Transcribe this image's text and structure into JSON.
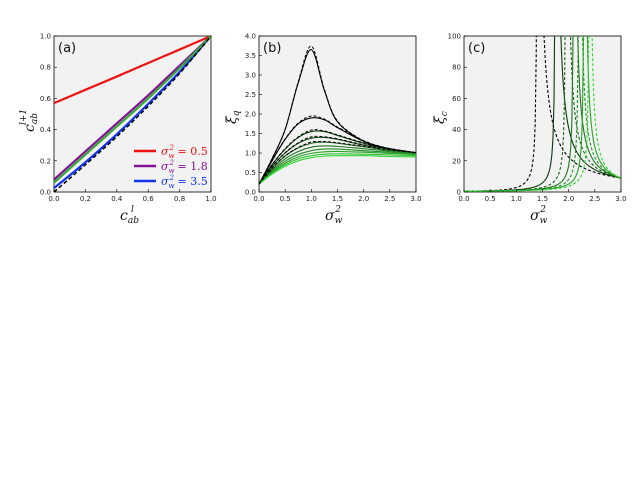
{
  "chart_data": [
    {
      "panel": "(a)",
      "type": "line",
      "xlabel": "c",
      "xlabel_sub": "ab",
      "xlabel_sup": "l",
      "ylabel": "c",
      "ylabel_sub": "ab",
      "ylabel_sup": "l+1",
      "xlim": [
        0,
        1
      ],
      "ylim": [
        0,
        1
      ],
      "xticks": [
        "0.0",
        "0.2",
        "0.4",
        "0.6",
        "0.8",
        "1.0"
      ],
      "yticks": [
        "0.0",
        "0.2",
        "0.4",
        "0.6",
        "0.8",
        "1.0"
      ],
      "legend_position": "lower-right",
      "legend_entries": [
        {
          "text": "σ",
          "sub": "w",
          "sup": "2",
          "value_text": " = 0.5",
          "color": "#ee1111"
        },
        {
          "text": "σ",
          "sub": "w",
          "sup": "2",
          "value_text": " = 1.8",
          "color": "#881199"
        },
        {
          "text": "σ",
          "sub": "w",
          "sup": "2",
          "value_text": " = 3.5",
          "color": "#1133ee"
        }
      ],
      "series": [
        {
          "legend_index": 0,
          "color": "#ee1111",
          "x": [
            0,
            0.2,
            0.4,
            0.6,
            0.8,
            1.0
          ],
          "y": [
            0.57,
            0.655,
            0.74,
            0.827,
            0.913,
            1.0
          ]
        },
        {
          "legend_index": 1,
          "color": "#881199",
          "x": [
            0,
            0.2,
            0.4,
            0.6,
            0.8,
            1.0
          ],
          "y": [
            0.08,
            0.26,
            0.44,
            0.62,
            0.81,
            1.0
          ]
        },
        {
          "legend_index": 2,
          "color": "#1133ee",
          "x": [
            0,
            0.2,
            0.4,
            0.6,
            0.8,
            1.0
          ],
          "y": [
            0.025,
            0.19,
            0.37,
            0.565,
            0.77,
            1.0
          ]
        },
        {
          "color": "#33aa33",
          "x": [
            0,
            0.2,
            0.4,
            0.6,
            0.8,
            1.0
          ],
          "y": [
            0.06,
            0.24,
            0.42,
            0.6,
            0.795,
            1.0
          ]
        },
        {
          "color": "#000000",
          "dashed": true,
          "x": [
            0,
            0.2,
            0.4,
            0.6,
            0.8,
            1.0
          ],
          "y": [
            0.0,
            0.175,
            0.355,
            0.55,
            0.76,
            1.0
          ]
        }
      ]
    },
    {
      "panel": "(b)",
      "type": "line",
      "xlabel": "σ",
      "xlabel_sub": "w",
      "xlabel_sup": "2",
      "ylabel": "ξ",
      "ylabel_sub": "q",
      "ylabel_sup": "",
      "xlim": [
        0,
        3
      ],
      "ylim": [
        0,
        4
      ],
      "xticks": [
        "0.0",
        "0.5",
        "1.0",
        "1.5",
        "2.0",
        "2.5",
        "3.0"
      ],
      "yticks": [
        "0.0",
        "0.5",
        "1.0",
        "1.5",
        "2.0",
        "2.5",
        "3.0",
        "3.5",
        "4.0"
      ],
      "curves": {
        "x": [
          0,
          0.25,
          0.5,
          0.75,
          1.0,
          1.25,
          1.5,
          2.0,
          2.5,
          3.0
        ],
        "series": [
          {
            "color": "#000000",
            "y": [
              0.2,
              0.85,
              1.6,
              2.8,
              3.65,
              2.6,
              1.8,
              1.3,
              1.1,
              1.0
            ]
          },
          {
            "color": "#000000",
            "y": [
              0.2,
              0.8,
              1.35,
              1.75,
              1.9,
              1.85,
              1.65,
              1.3,
              1.1,
              1.0
            ]
          },
          {
            "color": "#0a3a0a",
            "y": [
              0.2,
              0.7,
              1.1,
              1.4,
              1.55,
              1.55,
              1.45,
              1.25,
              1.1,
              1.0
            ]
          },
          {
            "color": "#124d12",
            "y": [
              0.2,
              0.65,
              1.0,
              1.25,
              1.38,
              1.4,
              1.35,
              1.2,
              1.1,
              1.0
            ]
          },
          {
            "color": "#1a601a",
            "y": [
              0.2,
              0.6,
              0.92,
              1.13,
              1.25,
              1.28,
              1.25,
              1.16,
              1.07,
              1.0
            ]
          },
          {
            "color": "#1f761f",
            "y": [
              0.2,
              0.56,
              0.85,
              1.04,
              1.15,
              1.18,
              1.17,
              1.11,
              1.05,
              1.0
            ]
          },
          {
            "color": "#238c23",
            "y": [
              0.2,
              0.53,
              0.79,
              0.96,
              1.06,
              1.1,
              1.1,
              1.06,
              1.02,
              0.98
            ]
          },
          {
            "color": "#27a427",
            "y": [
              0.2,
              0.5,
              0.74,
              0.9,
              0.99,
              1.03,
              1.04,
              1.02,
              0.99,
              0.96
            ]
          },
          {
            "color": "#2dbf2d",
            "y": [
              0.2,
              0.48,
              0.7,
              0.85,
              0.93,
              0.97,
              0.98,
              0.97,
              0.95,
              0.93
            ]
          },
          {
            "color": "#33d633",
            "y": [
              0.2,
              0.46,
              0.66,
              0.8,
              0.88,
              0.92,
              0.93,
              0.93,
              0.91,
              0.9
            ]
          }
        ],
        "dashed_indices": [
          0,
          1,
          2,
          3,
          4
        ]
      }
    },
    {
      "panel": "(c)",
      "type": "line",
      "xlabel": "σ",
      "xlabel_sub": "w",
      "xlabel_sup": "2",
      "ylabel": "ξ",
      "ylabel_sub": "c",
      "ylabel_sup": "",
      "xlim": [
        0,
        3
      ],
      "ylim": [
        0,
        100
      ],
      "xticks": [
        "0.0",
        "0.5",
        "1.0",
        "1.5",
        "2.0",
        "2.5",
        "3.0"
      ],
      "yticks": [
        "0",
        "20",
        "40",
        "60",
        "80",
        "100"
      ],
      "poles": [
        {
          "x": 1.4,
          "color": "#000000",
          "dashed": true
        },
        {
          "x": 1.75,
          "color": "#0a3a0a",
          "dashed": false
        },
        {
          "x": 1.95,
          "color": "#1a601a",
          "dashed": true
        },
        {
          "x": 2.1,
          "color": "#1f761f",
          "dashed": false
        },
        {
          "x": 2.2,
          "color": "#238c23",
          "dashed": true
        },
        {
          "x": 2.3,
          "color": "#27a427",
          "dashed": false
        },
        {
          "x": 2.4,
          "color": "#33d633",
          "dashed": true
        }
      ],
      "tail_value_at_3": 9
    }
  ]
}
